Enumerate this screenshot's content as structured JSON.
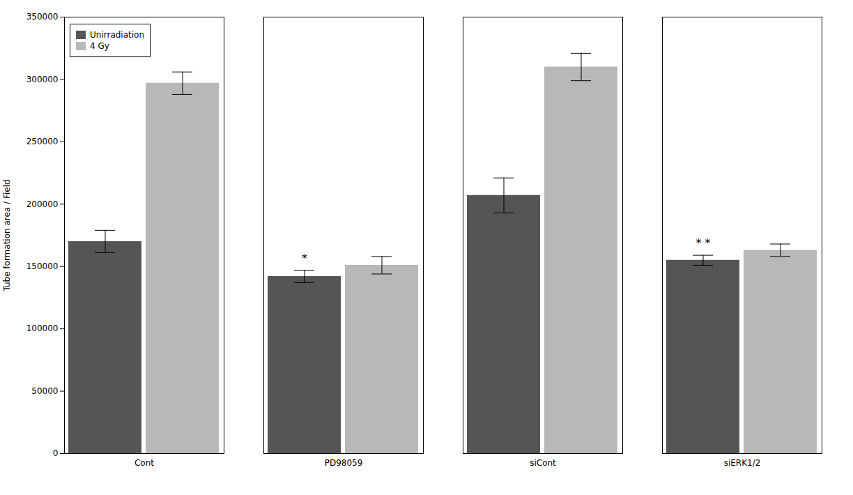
{
  "chart_data": {
    "type": "bar",
    "categories": [
      "Cont",
      "PD98059",
      "siCont",
      "siERK1/2"
    ],
    "series": [
      {
        "name": "Unirradiation",
        "color": "#555555",
        "values": [
          170000,
          142000,
          207000,
          155000
        ],
        "errors": [
          9000,
          5000,
          14000,
          4000
        ]
      },
      {
        "name": "4 Gy",
        "color": "#b8b8b8",
        "values": [
          297000,
          151000,
          310000,
          163000
        ],
        "errors": [
          9000,
          7000,
          11000,
          5000
        ]
      }
    ],
    "ylabel": "Tube formation area / Field",
    "ylim": [
      0,
      350000
    ],
    "yticks": [
      0,
      50000,
      100000,
      150000,
      200000,
      250000,
      300000,
      350000
    ],
    "legend": "upper left",
    "grid": false,
    "annotations": [
      {
        "text": "*",
        "category": "PD98059",
        "series": "Unirradiation"
      },
      {
        "text": "* *",
        "category": "siERK1/2",
        "series": "Unirradiation"
      }
    ]
  }
}
